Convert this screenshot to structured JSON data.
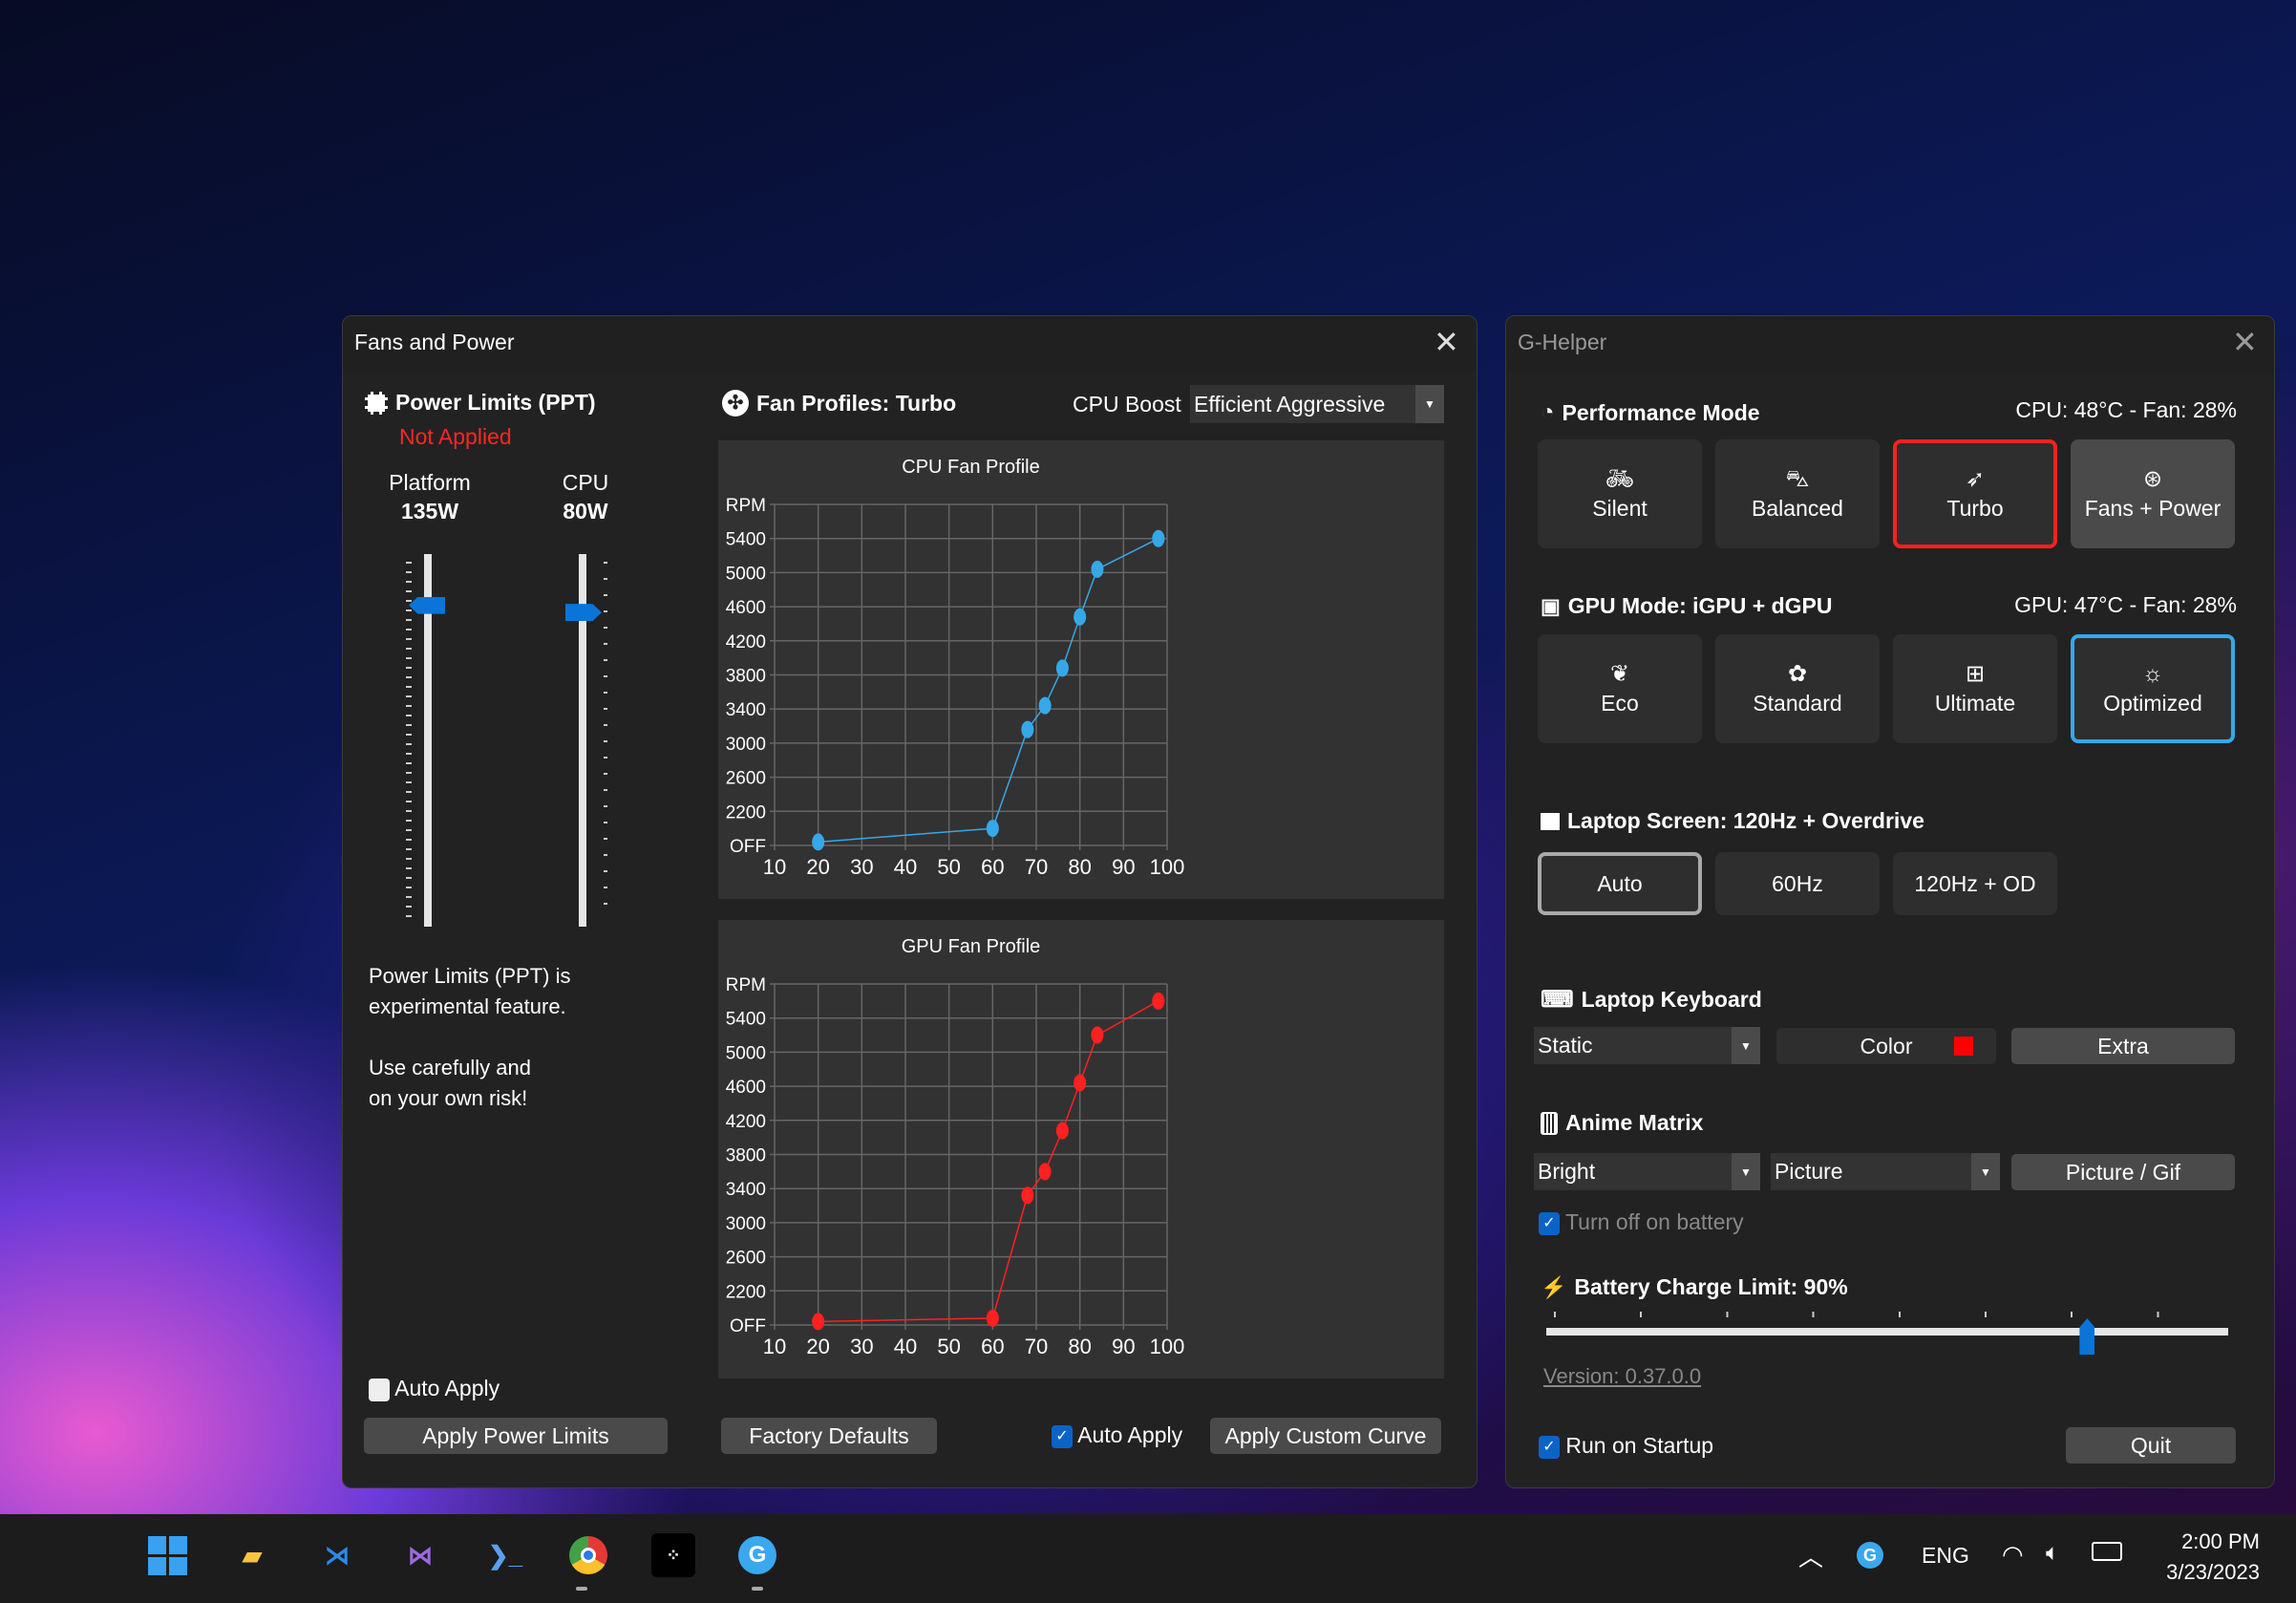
{
  "fans_window": {
    "title": "Fans and Power",
    "power_limits": {
      "title": "Power Limits (PPT)",
      "status": "Not Applied",
      "platform_label": "Platform",
      "platform_value": "135W",
      "platform_slider_fraction": 0.88,
      "cpu_label": "CPU",
      "cpu_value": "80W",
      "cpu_slider_fraction": 0.86,
      "note1": "Power Limits (PPT) is experimental feature.",
      "note2": "Use carefully and on your own risk!",
      "auto_apply_label": "Auto Apply",
      "auto_apply_checked": false,
      "apply_button": "Apply Power Limits"
    },
    "fan_profiles": {
      "title": "Fan Profiles: Turbo",
      "cpu_boost_label": "CPU Boost",
      "cpu_boost_value": "Efficient Aggressive",
      "factory_defaults": "Factory Defaults",
      "auto_apply_label": "Auto Apply",
      "auto_apply_checked": true,
      "apply_curve": "Apply Custom Curve"
    }
  },
  "chart_data": [
    {
      "type": "line",
      "title": "CPU Fan Profile",
      "x": [
        20,
        60,
        68,
        72,
        76,
        80,
        84,
        98
      ],
      "y": [
        1,
        5,
        34,
        41,
        52,
        67,
        81,
        90
      ],
      "xlim": [
        10,
        100
      ],
      "xticks": [
        "10",
        "20",
        "30",
        "40",
        "50",
        "60",
        "70",
        "80",
        "90",
        "100"
      ],
      "ylim": [
        0,
        100
      ],
      "yticks": [
        "OFF",
        "2200",
        "2600",
        "3000",
        "3400",
        "3800",
        "4200",
        "4600",
        "5000",
        "5400",
        "RPM"
      ],
      "grid": true,
      "color": "#36a8e8"
    },
    {
      "type": "line",
      "title": "GPU Fan Profile",
      "x": [
        20,
        60,
        68,
        72,
        76,
        80,
        84,
        98
      ],
      "y": [
        1,
        2,
        38,
        45,
        57,
        71,
        85,
        95
      ],
      "xlim": [
        10,
        100
      ],
      "xticks": [
        "10",
        "20",
        "30",
        "40",
        "50",
        "60",
        "70",
        "80",
        "90",
        "100"
      ],
      "ylim": [
        0,
        100
      ],
      "yticks": [
        "OFF",
        "2200",
        "2600",
        "3000",
        "3400",
        "3800",
        "4200",
        "4600",
        "5000",
        "5400",
        "RPM"
      ],
      "grid": true,
      "color": "#ff2020"
    }
  ],
  "ghelper": {
    "title": "G-Helper",
    "performance": {
      "title": "Performance Mode",
      "status": "CPU: 48°C -  Fan: 28%",
      "modes": [
        {
          "label": "Silent",
          "icon": "bicycle-icon"
        },
        {
          "label": "Balanced",
          "icon": "car-icon"
        },
        {
          "label": "Turbo",
          "icon": "rocket-icon",
          "selected": true
        },
        {
          "label": "Fans + Power",
          "icon": "fan-icon"
        }
      ]
    },
    "gpu": {
      "title": "GPU Mode: iGPU + dGPU",
      "status": "GPU: 47°C -  Fan: 28%",
      "modes": [
        {
          "label": "Eco",
          "icon": "leaf-icon"
        },
        {
          "label": "Standard",
          "icon": "flower-icon"
        },
        {
          "label": "Ultimate",
          "icon": "gamepad-icon"
        },
        {
          "label": "Optimized",
          "icon": "bulb-gear-icon",
          "selected": true
        }
      ]
    },
    "screen": {
      "title": "Laptop Screen: 120Hz + Overdrive",
      "options": [
        {
          "label": "Auto",
          "selected": true
        },
        {
          "label": "60Hz"
        },
        {
          "label": "120Hz + OD"
        }
      ]
    },
    "keyboard": {
      "title": "Laptop Keyboard",
      "mode": "Static",
      "color_label": "Color",
      "color": "#ff0000",
      "extra": "Extra"
    },
    "anime": {
      "title": "Anime Matrix",
      "brightness": "Bright",
      "mode": "Picture",
      "picture_button": "Picture / Gif",
      "turn_off_label": "Turn off on battery",
      "turn_off_checked": true
    },
    "battery": {
      "title": "Battery Charge Limit: 90%",
      "limit_percent": 90,
      "range": [
        50,
        100
      ]
    },
    "version": "Version: 0.37.0.0",
    "run_on_startup": "Run on Startup",
    "run_on_startup_checked": true,
    "quit": "Quit"
  },
  "taskbar": {
    "apps": [
      "start",
      "file-explorer",
      "vscode",
      "visual-studio",
      "powershell",
      "chrome",
      "tidal",
      "g-helper"
    ],
    "language": "ENG",
    "time": "2:00 PM",
    "date": "3/23/2023"
  },
  "colors": {
    "accent": "#0a64c8",
    "turbo_border": "#ff2020",
    "optimized_border": "#36a8e8"
  }
}
